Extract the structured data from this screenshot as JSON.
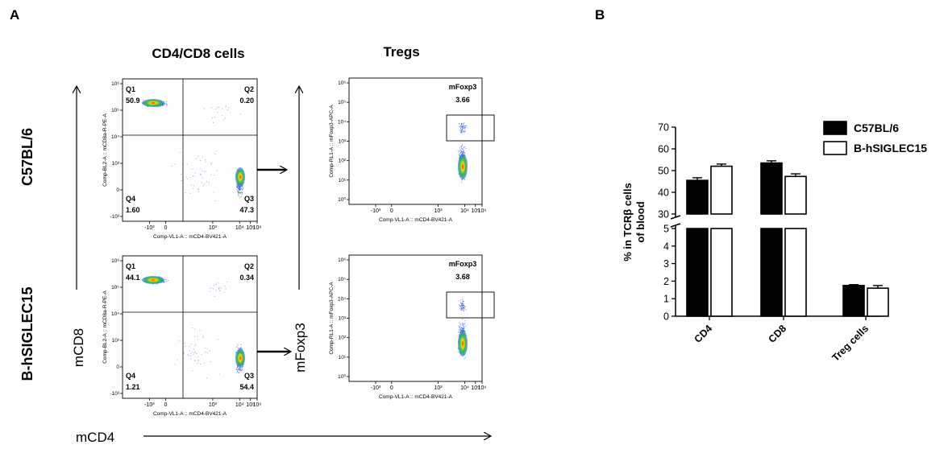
{
  "panel_labels": {
    "a": "A",
    "b": "B"
  },
  "headers": {
    "left": "CD4/CD8 cells",
    "right": "Tregs"
  },
  "rows": [
    "C57BL/6",
    "B-hSIGLEC15"
  ],
  "flow_axis_labels": {
    "x_common": "mCD4",
    "y_left": "mCD8",
    "y_right": "mFoxp3"
  },
  "cd4cd8_plots": [
    {
      "ylabel": "Comp-BL2-A :: mCD8a-R-PE-A",
      "xlabel": "Comp-VL1-A :: mCD4-BV421-A",
      "quadrants": [
        {
          "name": "Q1",
          "value": "50.9"
        },
        {
          "name": "Q2",
          "value": "0.20"
        },
        {
          "name": "Q3",
          "value": "47.3"
        },
        {
          "name": "Q4",
          "value": "1.60"
        }
      ]
    },
    {
      "ylabel": "Comp-BL2-A :: mCD8a-R-PE-A",
      "xlabel": "Comp-VL1-A :: mCD4-BV421-A",
      "quadrants": [
        {
          "name": "Q1",
          "value": "44.1"
        },
        {
          "name": "Q2",
          "value": "0.34"
        },
        {
          "name": "Q3",
          "value": "54.4"
        },
        {
          "name": "Q4",
          "value": "1.21"
        }
      ]
    }
  ],
  "treg_plots": [
    {
      "ylabel": "Comp-RL1-A :: mFoxp3-APC-A",
      "xlabel": "Comp-VL1-A :: mCD4-BV421-A",
      "gate_name": "mFoxp3",
      "gate_value": "3.66"
    },
    {
      "ylabel": "Comp-RL1-A :: mFoxp3-APC-A",
      "xlabel": "Comp-VL1-A :: mCD4-BV421-A",
      "gate_name": "mFoxp3",
      "gate_value": "3.68"
    }
  ],
  "flow_ticks": {
    "x": [
      "-10³",
      "0",
      "10³",
      "10⁴",
      "10⁵",
      "10⁶"
    ],
    "y": [
      "10⁶",
      "10⁵",
      "10⁴",
      "10³",
      "0",
      "-10³"
    ],
    "y_treg": [
      "10⁶",
      "10⁵",
      "10⁴",
      "10³",
      "10²",
      "10¹",
      "10⁰"
    ]
  },
  "chart_data": {
    "type": "bar",
    "categories": [
      "CD4",
      "CD8",
      "Treg cells"
    ],
    "series": [
      {
        "name": "C57BL/6",
        "values": [
          45.5,
          53.5,
          1.75
        ],
        "errors": [
          1.2,
          1.0,
          0.05
        ],
        "color": "#000000"
      },
      {
        "name": "B-hSIGLEC15",
        "values": [
          52,
          47.3,
          1.6
        ],
        "errors": [
          1.0,
          1.2,
          0.15
        ],
        "color": "#ffffff"
      }
    ],
    "ylabel": "% in TCRβ cells of blood",
    "ylabel_lines": [
      "% in TCRβ cells",
      "of  blood"
    ],
    "y_break": {
      "lower": [
        0,
        5
      ],
      "upper": [
        30,
        70
      ]
    },
    "yticks_lower": [
      "0",
      "1",
      "2",
      "3",
      "4",
      "5"
    ],
    "yticks_upper": [
      "30",
      "40",
      "50",
      "60",
      "70"
    ],
    "legend_position": "top-right"
  }
}
